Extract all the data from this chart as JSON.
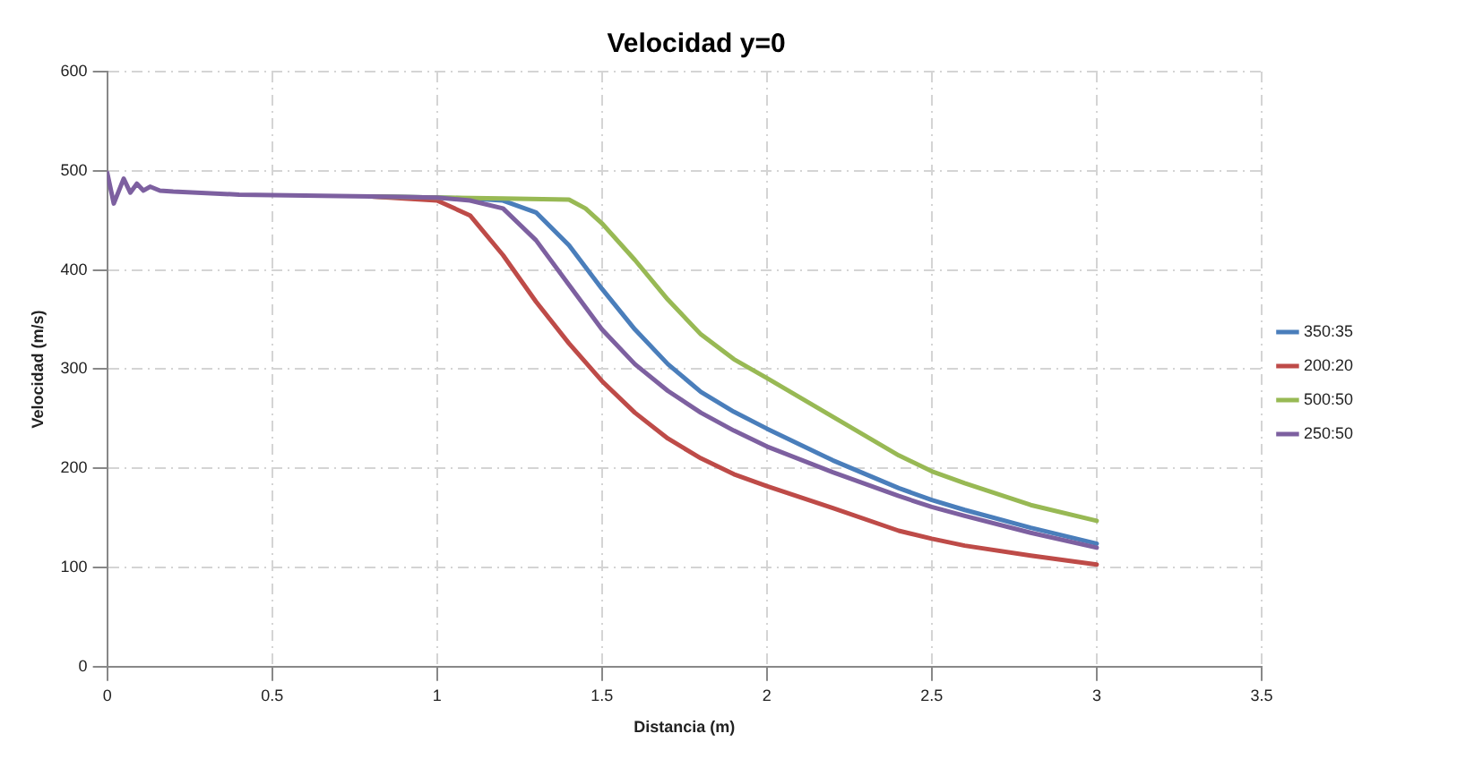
{
  "chart_data": {
    "type": "line",
    "title": "Velocidad y=0",
    "xlabel": "Distancia (m)",
    "ylabel": "Velocidad (m/s)",
    "xlim": [
      0,
      3.5
    ],
    "xticks": [
      0,
      0.5,
      1,
      1.5,
      2,
      2.5,
      3,
      3.5
    ],
    "ylim": [
      0,
      600
    ],
    "yticks": [
      0,
      100,
      200,
      300,
      400,
      500,
      600
    ],
    "grid": true,
    "legend": "right",
    "marker": "none",
    "line_style": "solid",
    "series": [
      {
        "name": "350:35",
        "color": "#4a7ebb",
        "x": [
          0.8,
          1,
          1.1,
          1.2,
          1.3,
          1.4,
          1.5,
          1.6,
          1.7,
          1.8,
          1.9,
          2,
          2.2,
          2.4,
          2.5,
          2.6,
          2.8,
          3
        ],
        "values": [
          474,
          473,
          472,
          470,
          458,
          425,
          381,
          340,
          305,
          277,
          257,
          240,
          208,
          180,
          168,
          158,
          140,
          124
        ]
      },
      {
        "name": "200:20",
        "color": "#be4b48",
        "x": [
          0.8,
          1,
          1.1,
          1.2,
          1.3,
          1.4,
          1.5,
          1.6,
          1.7,
          1.8,
          1.9,
          2,
          2.2,
          2.4,
          2.5,
          2.6,
          2.8,
          3
        ],
        "values": [
          474,
          470,
          455,
          415,
          368,
          326,
          288,
          256,
          230,
          210,
          194,
          182,
          160,
          137,
          129,
          122,
          112,
          103
        ]
      },
      {
        "name": "500:50",
        "color": "#98b954",
        "x": [
          0.8,
          1,
          1.2,
          1.4,
          1.45,
          1.5,
          1.6,
          1.7,
          1.8,
          1.9,
          2,
          2.2,
          2.4,
          2.5,
          2.6,
          2.8,
          3
        ],
        "values": [
          474,
          473,
          472,
          471,
          462,
          447,
          410,
          370,
          335,
          310,
          291,
          252,
          213,
          197,
          185,
          163,
          147
        ]
      },
      {
        "name": "250:50",
        "color": "#7d60a0",
        "x": [
          0,
          0.02,
          0.05,
          0.07,
          0.09,
          0.11,
          0.13,
          0.16,
          0.2,
          0.4,
          0.6,
          0.8,
          1,
          1.1,
          1.2,
          1.3,
          1.4,
          1.5,
          1.6,
          1.7,
          1.8,
          1.9,
          2,
          2.2,
          2.4,
          2.5,
          2.6,
          2.8,
          3
        ],
        "values": [
          498,
          467,
          492,
          478,
          487,
          480,
          484,
          480,
          479,
          476,
          475,
          474,
          473,
          470,
          462,
          430,
          385,
          340,
          305,
          278,
          256,
          238,
          222,
          196,
          172,
          161,
          152,
          135,
          120
        ]
      }
    ]
  }
}
